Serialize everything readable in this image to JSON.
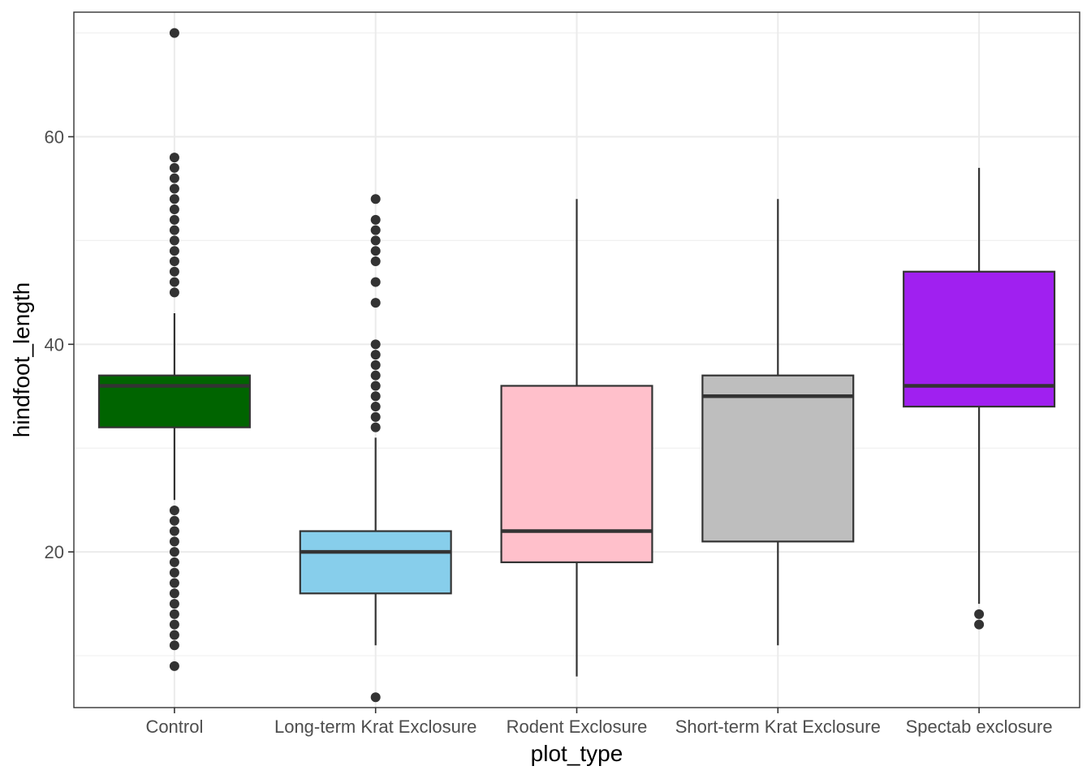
{
  "chart_data": {
    "type": "boxplot",
    "xlabel": "plot_type",
    "ylabel": "hindfoot_length",
    "ylim": [
      5,
      72
    ],
    "yticks": [
      20,
      40,
      60
    ],
    "grid": true,
    "legend": "none",
    "categories": [
      "Control",
      "Long-term Krat Exclosure",
      "Rodent Exclosure",
      "Short-term Krat Exclosure",
      "Spectab exclosure"
    ],
    "boxes": [
      {
        "category": "Control",
        "color": "#006400",
        "q1": 32,
        "median": 36,
        "q3": 37,
        "whisker_low": 25,
        "whisker_high": 43,
        "outliers": [
          70,
          58,
          57,
          56,
          55,
          54,
          53,
          52,
          51,
          50,
          49,
          48,
          47,
          46,
          45,
          24,
          23,
          22,
          21,
          20,
          19,
          18,
          17,
          16,
          15,
          14,
          13,
          12,
          11,
          9
        ]
      },
      {
        "category": "Long-term Krat Exclosure",
        "color": "#87CEEB",
        "q1": 16,
        "median": 20,
        "q3": 22,
        "whisker_low": 11,
        "whisker_high": 31,
        "outliers": [
          54,
          52,
          51,
          50,
          49,
          48,
          46,
          44,
          40,
          39,
          38,
          37,
          36,
          35,
          34,
          33,
          32,
          6
        ]
      },
      {
        "category": "Rodent Exclosure",
        "color": "#FFC0CB",
        "q1": 19,
        "median": 22,
        "q3": 36,
        "whisker_low": 8,
        "whisker_high": 54,
        "outliers": []
      },
      {
        "category": "Short-term Krat Exclosure",
        "color": "#BEBEBE",
        "q1": 21,
        "median": 35,
        "q3": 37,
        "whisker_low": 11,
        "whisker_high": 54,
        "outliers": []
      },
      {
        "category": "Spectab exclosure",
        "color": "#A020F0",
        "q1": 34,
        "median": 36,
        "q3": 47,
        "whisker_low": 15,
        "whisker_high": 57,
        "outliers": [
          14,
          13
        ]
      }
    ]
  }
}
